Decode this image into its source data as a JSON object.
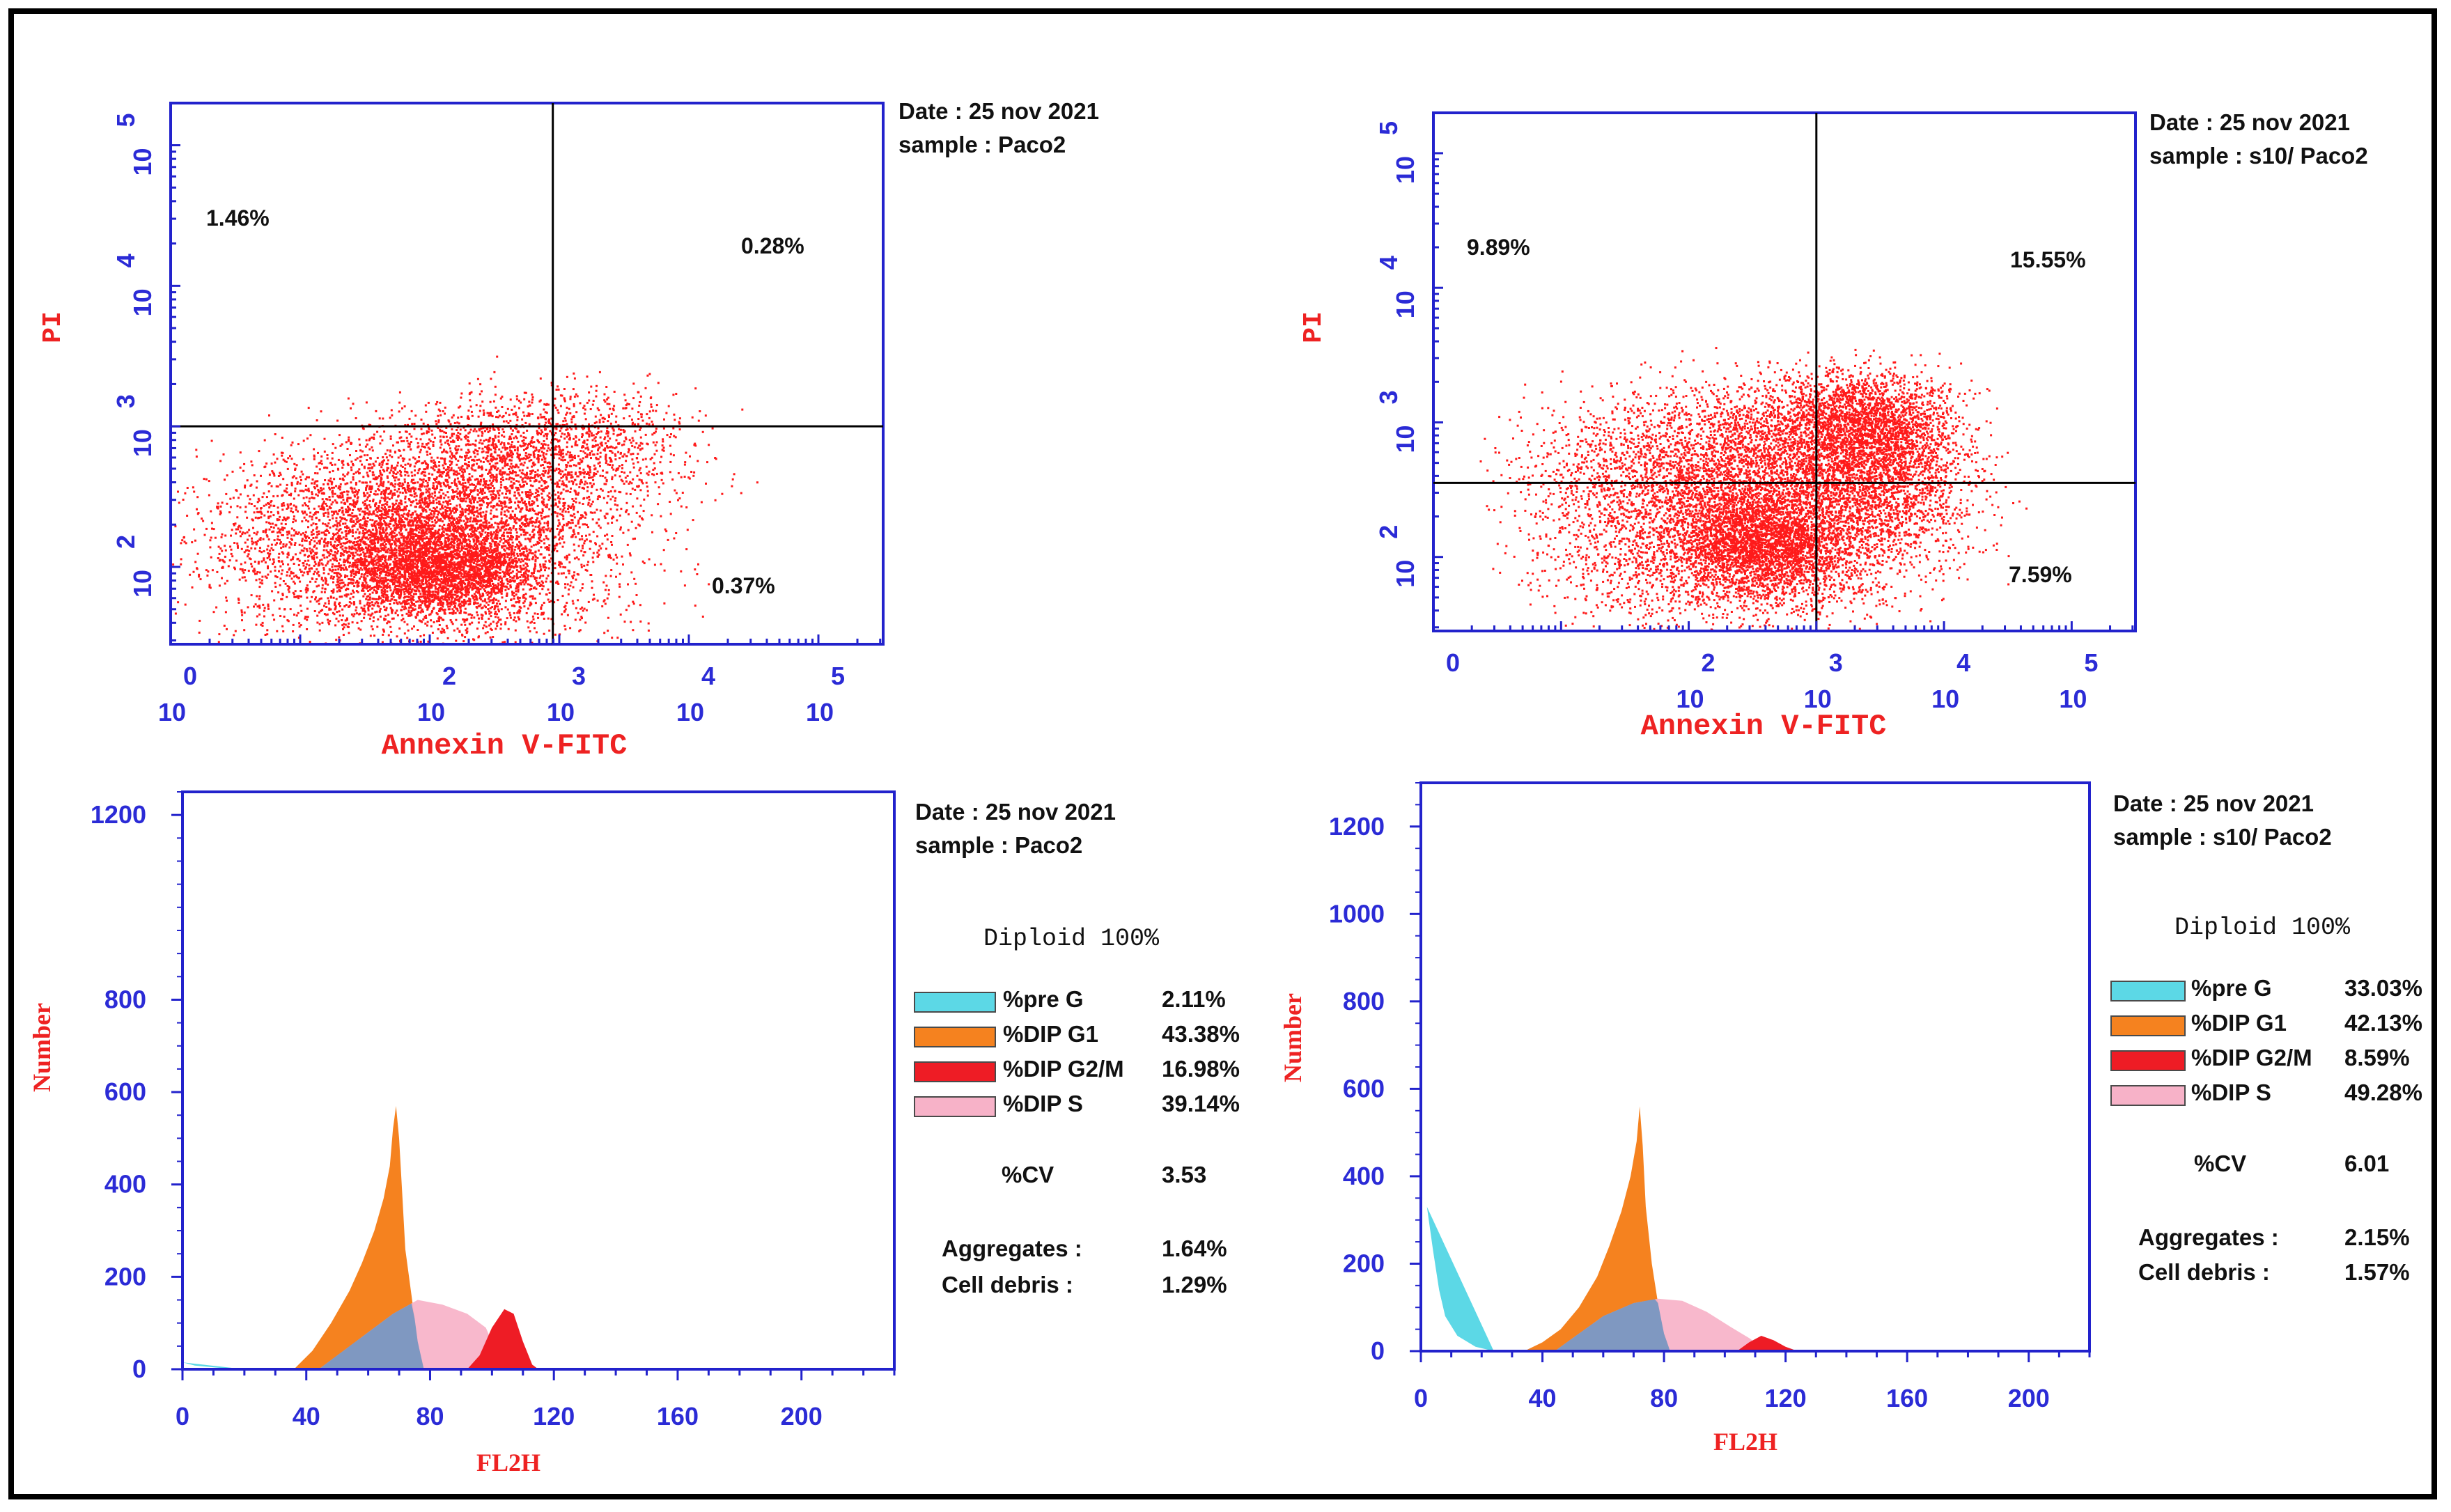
{
  "colors": {
    "axis": "#2222cc",
    "tick_text": "#2b2bd6",
    "label_red": "#ee2222",
    "dots": "#ff1a1a",
    "pre_g": "#5cd8e6",
    "dip_g1": "#f5821f",
    "dip_g2m": "#ee1c25",
    "dip_s": "#f7b2c8",
    "overlap": "#6a94c2"
  },
  "chart_data": [
    {
      "type": "scatter",
      "id": "dot-plot-control",
      "xlabel": "Annexin V-FITC",
      "ylabel": "PI",
      "x_ticks": [
        {
          "exp": "0",
          "base": "10"
        },
        {
          "exp": "2",
          "base": "10"
        },
        {
          "exp": "3",
          "base": "10"
        },
        {
          "exp": "4",
          "base": "10"
        },
        {
          "exp": "5",
          "base": "10"
        }
      ],
      "y_ticks": [
        {
          "exp": "5",
          "base": "10"
        },
        {
          "exp": "4",
          "base": "10"
        },
        {
          "exp": "3",
          "base": "10"
        },
        {
          "exp": "2",
          "base": "10"
        }
      ],
      "quadrant_gate": {
        "x_log": 2.95,
        "y_log": 3.0
      },
      "quadrants": {
        "upper_left": "1.46%",
        "upper_right": "0.28%",
        "lower_left": "",
        "lower_right": "0.37%"
      },
      "info": {
        "date": "Date : 25 nov 2021",
        "sample": "sample :  Paco2"
      }
    },
    {
      "type": "scatter",
      "id": "dot-plot-s10",
      "xlabel": "Annexin V-FITC",
      "ylabel": "PI",
      "x_ticks": [
        {
          "exp": "0",
          "base": ""
        },
        {
          "exp": "2",
          "base": "10"
        },
        {
          "exp": "3",
          "base": "10"
        },
        {
          "exp": "4",
          "base": "10"
        },
        {
          "exp": "5",
          "base": "10"
        }
      ],
      "y_ticks": [
        {
          "exp": "5",
          "base": "10"
        },
        {
          "exp": "4",
          "base": "10"
        },
        {
          "exp": "3",
          "base": "10"
        },
        {
          "exp": "2",
          "base": "10"
        }
      ],
      "quadrant_gate": {
        "x_log": 3.0,
        "y_log": 2.55
      },
      "quadrants": {
        "upper_left": "9.89%",
        "upper_right": "15.55%",
        "lower_left": "",
        "lower_right": "7.59%"
      },
      "info": {
        "date": "Date : 25 nov 2021",
        "sample": "sample :  s10/ Paco2"
      }
    },
    {
      "type": "area",
      "id": "cell-cycle-control",
      "xlabel": "FL2H",
      "ylabel": "Number",
      "xlim": [
        0,
        230
      ],
      "ylim": [
        0,
        1250
      ],
      "x_ticks": [
        "0",
        "40",
        "80",
        "120",
        "160",
        "200"
      ],
      "y_ticks": [
        "0",
        "200",
        "400",
        "600",
        "800",
        "1200"
      ],
      "series": [
        {
          "name": "%pre G",
          "points": [
            [
              0,
              15
            ],
            [
              4,
              8
            ],
            [
              12,
              3
            ],
            [
              20,
              0
            ]
          ]
        },
        {
          "name": "%DIP G1",
          "points": [
            [
              36,
              0
            ],
            [
              42,
              40
            ],
            [
              48,
              100
            ],
            [
              54,
              170
            ],
            [
              58,
              230
            ],
            [
              62,
              300
            ],
            [
              65,
              370
            ],
            [
              67,
              440
            ],
            [
              68,
              520
            ],
            [
              69,
              570
            ],
            [
              70,
              500
            ],
            [
              71,
              380
            ],
            [
              72,
              260
            ],
            [
              74,
              160
            ],
            [
              76,
              60
            ],
            [
              78,
              0
            ]
          ]
        },
        {
          "name": "%DIP S",
          "points": [
            [
              44,
              0
            ],
            [
              52,
              40
            ],
            [
              60,
              80
            ],
            [
              68,
              120
            ],
            [
              76,
              150
            ],
            [
              84,
              140
            ],
            [
              92,
              120
            ],
            [
              98,
              90
            ],
            [
              100,
              60
            ],
            [
              104,
              20
            ],
            [
              106,
              0
            ]
          ]
        },
        {
          "name": "%DIP G2/M",
          "points": [
            [
              92,
              0
            ],
            [
              96,
              30
            ],
            [
              100,
              90
            ],
            [
              104,
              130
            ],
            [
              107,
              120
            ],
            [
              110,
              60
            ],
            [
              113,
              10
            ],
            [
              115,
              0
            ]
          ]
        }
      ],
      "info": {
        "date": "Date : 25 nov 2021",
        "sample": "sample :  Paco2"
      },
      "legend": {
        "title": "Diploid 100%",
        "items": [
          {
            "label": "%pre G",
            "value": "2.11%"
          },
          {
            "label": "%DIP G1",
            "value": "43.38%"
          },
          {
            "label": "%DIP G2/M",
            "value": "16.98%"
          },
          {
            "label": "%DIP S",
            "value": "39.14%"
          }
        ],
        "stats": [
          {
            "label": "%CV",
            "value": "3.53"
          },
          {
            "label": "Aggregates :",
            "value": "1.64%"
          },
          {
            "label": "Cell debris  :",
            "value": "1.29%"
          }
        ]
      }
    },
    {
      "type": "area",
      "id": "cell-cycle-s10",
      "xlabel": "FL2H",
      "ylabel": "Number",
      "xlim": [
        0,
        220
      ],
      "ylim": [
        0,
        1300
      ],
      "x_ticks": [
        "0",
        "40",
        "80",
        "120",
        "160",
        "200"
      ],
      "y_ticks": [
        "0",
        "200",
        "400",
        "600",
        "800",
        "1000",
        "1200"
      ],
      "series": [
        {
          "name": "%pre G",
          "points": [
            [
              0,
              360
            ],
            [
              2,
              330
            ],
            [
              4,
              230
            ],
            [
              6,
              140
            ],
            [
              8,
              80
            ],
            [
              12,
              35
            ],
            [
              18,
              10
            ],
            [
              24,
              0
            ]
          ]
        },
        {
          "name": "%DIP G1",
          "points": [
            [
              34,
              0
            ],
            [
              40,
              20
            ],
            [
              46,
              50
            ],
            [
              52,
              100
            ],
            [
              58,
              170
            ],
            [
              62,
              240
            ],
            [
              66,
              320
            ],
            [
              69,
              400
            ],
            [
              71,
              480
            ],
            [
              72,
              560
            ],
            [
              73,
              470
            ],
            [
              74,
              330
            ],
            [
              76,
              200
            ],
            [
              78,
              110
            ],
            [
              80,
              40
            ],
            [
              82,
              0
            ]
          ]
        },
        {
          "name": "%DIP S",
          "points": [
            [
              44,
              0
            ],
            [
              52,
              40
            ],
            [
              60,
              80
            ],
            [
              70,
              110
            ],
            [
              78,
              120
            ],
            [
              86,
              115
            ],
            [
              94,
              90
            ],
            [
              102,
              55
            ],
            [
              108,
              30
            ],
            [
              112,
              10
            ],
            [
              115,
              0
            ]
          ]
        },
        {
          "name": "%DIP G2/M",
          "points": [
            [
              104,
              0
            ],
            [
              108,
              20
            ],
            [
              112,
              35
            ],
            [
              116,
              25
            ],
            [
              120,
              10
            ],
            [
              124,
              0
            ]
          ]
        }
      ],
      "info": {
        "date": "Date : 25 nov 2021",
        "sample": "sample : s10/ Paco2"
      },
      "legend": {
        "title": "Diploid 100%",
        "items": [
          {
            "label": "%pre G",
            "value": "33.03%"
          },
          {
            "label": "%DIP G1",
            "value": "42.13%"
          },
          {
            "label": "%DIP G2/M",
            "value": "8.59%"
          },
          {
            "label": "%DIP S",
            "value": "49.28%"
          }
        ],
        "stats": [
          {
            "label": "%CV",
            "value": "6.01"
          },
          {
            "label": "Aggregates :",
            "value": "2.15%"
          },
          {
            "label": "Cell debris  :",
            "value": "1.57%"
          }
        ]
      }
    }
  ]
}
